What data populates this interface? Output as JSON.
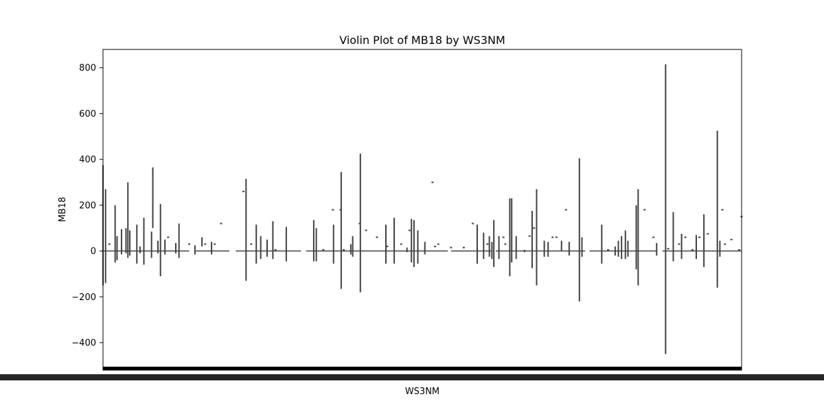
{
  "chart_data": {
    "type": "violin",
    "title": "Violin Plot of MB18 by WS3NM",
    "xlabel": "WS3NM",
    "ylabel": "MB18",
    "ylim": [
      -520,
      880
    ],
    "yticks": [
      -400,
      -200,
      0,
      200,
      400,
      600,
      800
    ],
    "ytick_labels": [
      "−400",
      "−200",
      "0",
      "200",
      "400",
      "600",
      "800"
    ],
    "x_tick_labels_note": "",
    "grid": false,
    "color": "#404040",
    "spike_groups": [
      {
        "pos": 0.0,
        "min": -150,
        "max": 375
      },
      {
        "pos": 0.004,
        "min": -140,
        "max": 270
      },
      {
        "pos": 0.01,
        "min": 30,
        "max": 30
      },
      {
        "pos": 0.019,
        "min": -50,
        "max": 200
      },
      {
        "pos": 0.022,
        "min": -40,
        "max": 65
      },
      {
        "pos": 0.029,
        "min": -15,
        "max": 95
      },
      {
        "pos": 0.036,
        "min": -10,
        "max": 100
      },
      {
        "pos": 0.039,
        "min": -30,
        "max": 300
      },
      {
        "pos": 0.042,
        "min": -20,
        "max": 90
      },
      {
        "pos": 0.053,
        "min": -55,
        "max": 115
      },
      {
        "pos": 0.058,
        "min": -10,
        "max": 20
      },
      {
        "pos": 0.064,
        "min": -60,
        "max": 145
      },
      {
        "pos": 0.076,
        "min": -30,
        "max": 85
      },
      {
        "pos": 0.078,
        "min": 100,
        "max": 365
      },
      {
        "pos": 0.086,
        "min": -10,
        "max": 45
      },
      {
        "pos": 0.09,
        "min": -110,
        "max": 205
      },
      {
        "pos": 0.097,
        "min": -15,
        "max": 50
      },
      {
        "pos": 0.102,
        "min": 60,
        "max": 60
      },
      {
        "pos": 0.114,
        "min": -10,
        "max": 35
      },
      {
        "pos": 0.119,
        "min": -30,
        "max": 120
      },
      {
        "pos": 0.135,
        "min": 30,
        "max": 30
      },
      {
        "pos": 0.144,
        "min": -15,
        "max": 25
      },
      {
        "pos": 0.155,
        "min": 20,
        "max": 60
      },
      {
        "pos": 0.16,
        "min": 30,
        "max": 30
      },
      {
        "pos": 0.17,
        "min": -15,
        "max": 40
      },
      {
        "pos": 0.175,
        "min": 30,
        "max": 30
      },
      {
        "pos": 0.185,
        "min": 120,
        "max": 120
      },
      {
        "pos": 0.224,
        "min": -130,
        "max": 315
      },
      {
        "pos": 0.22,
        "min": 260,
        "max": 260
      },
      {
        "pos": 0.232,
        "min": 30,
        "max": 30
      },
      {
        "pos": 0.24,
        "min": -55,
        "max": 115
      },
      {
        "pos": 0.247,
        "min": -35,
        "max": 65
      },
      {
        "pos": 0.257,
        "min": -25,
        "max": 50
      },
      {
        "pos": 0.266,
        "min": -35,
        "max": 130
      },
      {
        "pos": 0.27,
        "min": 5,
        "max": 5
      },
      {
        "pos": 0.287,
        "min": -45,
        "max": 105
      },
      {
        "pos": 0.33,
        "min": -45,
        "max": 135
      },
      {
        "pos": 0.334,
        "min": -45,
        "max": 100
      },
      {
        "pos": 0.345,
        "min": 5,
        "max": 5
      },
      {
        "pos": 0.361,
        "min": -55,
        "max": 115
      },
      {
        "pos": 0.36,
        "min": 180,
        "max": 180
      },
      {
        "pos": 0.373,
        "min": -165,
        "max": 345
      },
      {
        "pos": 0.372,
        "min": 180,
        "max": 180
      },
      {
        "pos": 0.377,
        "min": 5,
        "max": 5
      },
      {
        "pos": 0.388,
        "min": -15,
        "max": 30
      },
      {
        "pos": 0.391,
        "min": -25,
        "max": 65
      },
      {
        "pos": 0.402,
        "min": 120,
        "max": 120
      },
      {
        "pos": 0.403,
        "min": -180,
        "max": 425
      },
      {
        "pos": 0.412,
        "min": 90,
        "max": 90
      },
      {
        "pos": 0.429,
        "min": 60,
        "max": 60
      },
      {
        "pos": 0.443,
        "min": -55,
        "max": 115
      },
      {
        "pos": 0.445,
        "min": 20,
        "max": 20
      },
      {
        "pos": 0.456,
        "min": -55,
        "max": 145
      },
      {
        "pos": 0.467,
        "min": 30,
        "max": 30
      },
      {
        "pos": 0.476,
        "min": -5,
        "max": 15
      },
      {
        "pos": 0.483,
        "min": -50,
        "max": 140
      },
      {
        "pos": 0.48,
        "min": 90,
        "max": 90
      },
      {
        "pos": 0.487,
        "min": -70,
        "max": 135
      },
      {
        "pos": 0.493,
        "min": -55,
        "max": 90
      },
      {
        "pos": 0.504,
        "min": -15,
        "max": 40
      },
      {
        "pos": 0.516,
        "min": 300,
        "max": 300
      },
      {
        "pos": 0.52,
        "min": 20,
        "max": 20
      },
      {
        "pos": 0.525,
        "min": 30,
        "max": 30
      },
      {
        "pos": 0.545,
        "min": 15,
        "max": 15
      },
      {
        "pos": 0.565,
        "min": 15,
        "max": 15
      },
      {
        "pos": 0.579,
        "min": 120,
        "max": 120
      },
      {
        "pos": 0.586,
        "min": -55,
        "max": 115
      },
      {
        "pos": 0.596,
        "min": -35,
        "max": 80
      },
      {
        "pos": 0.602,
        "min": 30,
        "max": 30
      },
      {
        "pos": 0.605,
        "min": -25,
        "max": 65
      },
      {
        "pos": 0.609,
        "min": -35,
        "max": 40
      },
      {
        "pos": 0.612,
        "min": -70,
        "max": 135
      },
      {
        "pos": 0.62,
        "min": -35,
        "max": 65
      },
      {
        "pos": 0.627,
        "min": 60,
        "max": 60
      },
      {
        "pos": 0.63,
        "min": 30,
        "max": 30
      },
      {
        "pos": 0.637,
        "min": -110,
        "max": 230
      },
      {
        "pos": 0.64,
        "min": -50,
        "max": 230
      },
      {
        "pos": 0.647,
        "min": -35,
        "max": 65
      },
      {
        "pos": 0.66,
        "min": -5,
        "max": 5
      },
      {
        "pos": 0.668,
        "min": 65,
        "max": 65
      },
      {
        "pos": 0.672,
        "min": -75,
        "max": 175
      },
      {
        "pos": 0.675,
        "min": 100,
        "max": 100
      },
      {
        "pos": 0.679,
        "min": -150,
        "max": 270
      },
      {
        "pos": 0.691,
        "min": -25,
        "max": 45
      },
      {
        "pos": 0.697,
        "min": -25,
        "max": 40
      },
      {
        "pos": 0.704,
        "min": 60,
        "max": 60
      },
      {
        "pos": 0.71,
        "min": 60,
        "max": 60
      },
      {
        "pos": 0.718,
        "min": 0,
        "max": 45
      },
      {
        "pos": 0.725,
        "min": 180,
        "max": 180
      },
      {
        "pos": 0.73,
        "min": -20,
        "max": 40
      },
      {
        "pos": 0.746,
        "min": -220,
        "max": 405
      },
      {
        "pos": 0.75,
        "min": -25,
        "max": 60
      },
      {
        "pos": 0.781,
        "min": -55,
        "max": 115
      },
      {
        "pos": 0.791,
        "min": 5,
        "max": 5
      },
      {
        "pos": 0.802,
        "min": -20,
        "max": 20
      },
      {
        "pos": 0.807,
        "min": -25,
        "max": 45
      },
      {
        "pos": 0.812,
        "min": -35,
        "max": 65
      },
      {
        "pos": 0.818,
        "min": -35,
        "max": 90
      },
      {
        "pos": 0.822,
        "min": -25,
        "max": 45
      },
      {
        "pos": 0.835,
        "min": -80,
        "max": 200
      },
      {
        "pos": 0.838,
        "min": -150,
        "max": 270
      },
      {
        "pos": 0.848,
        "min": 180,
        "max": 180
      },
      {
        "pos": 0.862,
        "min": 60,
        "max": 60
      },
      {
        "pos": 0.867,
        "min": -20,
        "max": 35
      },
      {
        "pos": 0.881,
        "min": -450,
        "max": 815
      },
      {
        "pos": 0.885,
        "min": 10,
        "max": 10
      },
      {
        "pos": 0.893,
        "min": -45,
        "max": 170
      },
      {
        "pos": 0.902,
        "min": 30,
        "max": 30
      },
      {
        "pos": 0.906,
        "min": -35,
        "max": 75
      },
      {
        "pos": 0.912,
        "min": 60,
        "max": 60
      },
      {
        "pos": 0.923,
        "min": 5,
        "max": 5
      },
      {
        "pos": 0.929,
        "min": -35,
        "max": 70
      },
      {
        "pos": 0.934,
        "min": 60,
        "max": 60
      },
      {
        "pos": 0.941,
        "min": -70,
        "max": 160
      },
      {
        "pos": 0.947,
        "min": 75,
        "max": 75
      },
      {
        "pos": 0.962,
        "min": -160,
        "max": 525
      },
      {
        "pos": 0.966,
        "min": -25,
        "max": 45
      },
      {
        "pos": 0.97,
        "min": 180,
        "max": 180
      },
      {
        "pos": 0.974,
        "min": 30,
        "max": 30
      },
      {
        "pos": 0.984,
        "min": 50,
        "max": 50
      },
      {
        "pos": 0.996,
        "min": 5,
        "max": 5
      },
      {
        "pos": 1.0,
        "min": 150,
        "max": 150
      }
    ],
    "baseline_gaps": [
      [
        0.135,
        0.145
      ],
      [
        0.198,
        0.208
      ],
      [
        0.31,
        0.318
      ],
      [
        0.54,
        0.545
      ],
      [
        0.61,
        0.615
      ],
      [
        0.755,
        0.762
      ],
      [
        0.868,
        0.876
      ]
    ]
  }
}
